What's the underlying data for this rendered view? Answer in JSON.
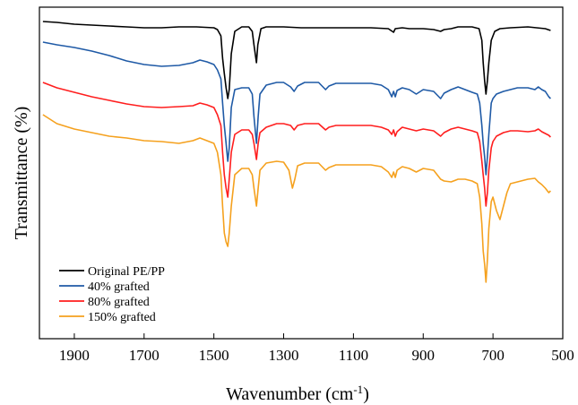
{
  "chart_data": {
    "type": "line",
    "xlabel_main": "Wavenumber (cm",
    "xlabel_sup": "-1",
    "xlabel_end": ")",
    "ylabel": "Transmittance (%)",
    "xlim": [
      2000,
      500
    ],
    "x_reversed": true,
    "y_ticks_shown": false,
    "grid": false,
    "legend_position": "bottom-left",
    "x_ticks": [
      1900,
      1700,
      1500,
      1300,
      1100,
      900,
      700,
      500
    ],
    "series": [
      {
        "name": "Original PE/PP",
        "color": "#000000",
        "points": [
          [
            1990,
            4
          ],
          [
            1950,
            5
          ],
          [
            1900,
            7
          ],
          [
            1850,
            8
          ],
          [
            1800,
            9
          ],
          [
            1750,
            10
          ],
          [
            1700,
            11
          ],
          [
            1650,
            11
          ],
          [
            1600,
            10
          ],
          [
            1550,
            10
          ],
          [
            1500,
            11
          ],
          [
            1490,
            13
          ],
          [
            1480,
            20
          ],
          [
            1475,
            45
          ],
          [
            1470,
            62
          ],
          [
            1465,
            78
          ],
          [
            1460,
            90
          ],
          [
            1456,
            80
          ],
          [
            1450,
            40
          ],
          [
            1440,
            15
          ],
          [
            1420,
            10
          ],
          [
            1400,
            10
          ],
          [
            1390,
            15
          ],
          [
            1385,
            30
          ],
          [
            1378,
            50
          ],
          [
            1374,
            30
          ],
          [
            1365,
            12
          ],
          [
            1350,
            10
          ],
          [
            1300,
            10
          ],
          [
            1250,
            11
          ],
          [
            1200,
            11
          ],
          [
            1150,
            11
          ],
          [
            1100,
            11
          ],
          [
            1050,
            11
          ],
          [
            1000,
            12
          ],
          [
            985,
            16
          ],
          [
            980,
            12
          ],
          [
            960,
            11
          ],
          [
            940,
            12
          ],
          [
            900,
            12
          ],
          [
            870,
            13
          ],
          [
            850,
            15
          ],
          [
            840,
            13
          ],
          [
            820,
            12
          ],
          [
            800,
            10
          ],
          [
            760,
            10
          ],
          [
            740,
            12
          ],
          [
            732,
            25
          ],
          [
            728,
            50
          ],
          [
            724,
            70
          ],
          [
            720,
            85
          ],
          [
            716,
            70
          ],
          [
            712,
            50
          ],
          [
            705,
            25
          ],
          [
            695,
            15
          ],
          [
            680,
            12
          ],
          [
            650,
            11
          ],
          [
            600,
            10
          ],
          [
            550,
            12
          ],
          [
            535,
            14
          ]
        ]
      },
      {
        "name": "40% grafted",
        "color": "#1f5aa6",
        "points": [
          [
            1990,
            27
          ],
          [
            1950,
            30
          ],
          [
            1900,
            33
          ],
          [
            1850,
            37
          ],
          [
            1800,
            42
          ],
          [
            1750,
            48
          ],
          [
            1700,
            52
          ],
          [
            1650,
            54
          ],
          [
            1600,
            53
          ],
          [
            1560,
            50
          ],
          [
            1540,
            47
          ],
          [
            1520,
            49
          ],
          [
            1500,
            52
          ],
          [
            1490,
            58
          ],
          [
            1480,
            68
          ],
          [
            1475,
            95
          ],
          [
            1470,
            120
          ],
          [
            1465,
            140
          ],
          [
            1460,
            160
          ],
          [
            1456,
            145
          ],
          [
            1450,
            100
          ],
          [
            1440,
            80
          ],
          [
            1420,
            78
          ],
          [
            1400,
            78
          ],
          [
            1390,
            85
          ],
          [
            1385,
            110
          ],
          [
            1378,
            140
          ],
          [
            1373,
            110
          ],
          [
            1368,
            85
          ],
          [
            1350,
            75
          ],
          [
            1320,
            72
          ],
          [
            1300,
            72
          ],
          [
            1280,
            77
          ],
          [
            1270,
            82
          ],
          [
            1260,
            76
          ],
          [
            1240,
            72
          ],
          [
            1200,
            72
          ],
          [
            1180,
            80
          ],
          [
            1170,
            76
          ],
          [
            1150,
            73
          ],
          [
            1100,
            73
          ],
          [
            1050,
            73
          ],
          [
            1020,
            75
          ],
          [
            1000,
            80
          ],
          [
            990,
            88
          ],
          [
            985,
            82
          ],
          [
            980,
            88
          ],
          [
            975,
            81
          ],
          [
            960,
            78
          ],
          [
            940,
            80
          ],
          [
            920,
            85
          ],
          [
            900,
            80
          ],
          [
            870,
            82
          ],
          [
            850,
            90
          ],
          [
            840,
            84
          ],
          [
            820,
            80
          ],
          [
            800,
            77
          ],
          [
            780,
            80
          ],
          [
            760,
            83
          ],
          [
            745,
            85
          ],
          [
            738,
            95
          ],
          [
            732,
            120
          ],
          [
            728,
            140
          ],
          [
            724,
            155
          ],
          [
            720,
            175
          ],
          [
            716,
            155
          ],
          [
            712,
            130
          ],
          [
            705,
            95
          ],
          [
            700,
            90
          ],
          [
            690,
            85
          ],
          [
            670,
            82
          ],
          [
            650,
            80
          ],
          [
            630,
            78
          ],
          [
            600,
            78
          ],
          [
            580,
            80
          ],
          [
            570,
            77
          ],
          [
            560,
            80
          ],
          [
            550,
            82
          ],
          [
            540,
            88
          ],
          [
            535,
            90
          ]
        ]
      },
      {
        "name": "80% grafted",
        "color": "#ff1e1e",
        "points": [
          [
            1990,
            72
          ],
          [
            1950,
            78
          ],
          [
            1900,
            83
          ],
          [
            1850,
            88
          ],
          [
            1800,
            92
          ],
          [
            1750,
            96
          ],
          [
            1700,
            99
          ],
          [
            1650,
            100
          ],
          [
            1600,
            99
          ],
          [
            1560,
            98
          ],
          [
            1540,
            95
          ],
          [
            1520,
            97
          ],
          [
            1500,
            100
          ],
          [
            1490,
            108
          ],
          [
            1480,
            120
          ],
          [
            1475,
            150
          ],
          [
            1470,
            175
          ],
          [
            1465,
            190
          ],
          [
            1460,
            200
          ],
          [
            1456,
            180
          ],
          [
            1450,
            150
          ],
          [
            1440,
            130
          ],
          [
            1420,
            125
          ],
          [
            1400,
            125
          ],
          [
            1390,
            130
          ],
          [
            1385,
            140
          ],
          [
            1378,
            158
          ],
          [
            1373,
            140
          ],
          [
            1368,
            128
          ],
          [
            1350,
            122
          ],
          [
            1320,
            118
          ],
          [
            1300,
            118
          ],
          [
            1280,
            120
          ],
          [
            1270,
            125
          ],
          [
            1260,
            120
          ],
          [
            1240,
            118
          ],
          [
            1200,
            118
          ],
          [
            1180,
            125
          ],
          [
            1170,
            122
          ],
          [
            1150,
            120
          ],
          [
            1100,
            120
          ],
          [
            1050,
            120
          ],
          [
            1020,
            122
          ],
          [
            1000,
            125
          ],
          [
            990,
            130
          ],
          [
            985,
            125
          ],
          [
            980,
            132
          ],
          [
            975,
            127
          ],
          [
            960,
            122
          ],
          [
            940,
            124
          ],
          [
            920,
            126
          ],
          [
            900,
            124
          ],
          [
            870,
            126
          ],
          [
            850,
            132
          ],
          [
            840,
            128
          ],
          [
            820,
            124
          ],
          [
            800,
            122
          ],
          [
            780,
            124
          ],
          [
            760,
            126
          ],
          [
            745,
            128
          ],
          [
            738,
            138
          ],
          [
            732,
            160
          ],
          [
            728,
            175
          ],
          [
            724,
            190
          ],
          [
            720,
            210
          ],
          [
            716,
            195
          ],
          [
            712,
            170
          ],
          [
            705,
            145
          ],
          [
            700,
            138
          ],
          [
            690,
            132
          ],
          [
            670,
            128
          ],
          [
            650,
            126
          ],
          [
            630,
            126
          ],
          [
            600,
            127
          ],
          [
            580,
            126
          ],
          [
            570,
            124
          ],
          [
            560,
            127
          ],
          [
            550,
            129
          ],
          [
            540,
            131
          ],
          [
            535,
            133
          ]
        ]
      },
      {
        "name": "150% grafted",
        "color": "#f5a11e",
        "points": [
          [
            1990,
            108
          ],
          [
            1950,
            118
          ],
          [
            1900,
            124
          ],
          [
            1850,
            128
          ],
          [
            1800,
            132
          ],
          [
            1750,
            134
          ],
          [
            1700,
            137
          ],
          [
            1650,
            138
          ],
          [
            1600,
            140
          ],
          [
            1560,
            137
          ],
          [
            1540,
            134
          ],
          [
            1520,
            137
          ],
          [
            1500,
            140
          ],
          [
            1490,
            150
          ],
          [
            1480,
            175
          ],
          [
            1475,
            210
          ],
          [
            1470,
            240
          ],
          [
            1465,
            250
          ],
          [
            1460,
            255
          ],
          [
            1456,
            240
          ],
          [
            1450,
            210
          ],
          [
            1440,
            175
          ],
          [
            1420,
            168
          ],
          [
            1400,
            168
          ],
          [
            1390,
            175
          ],
          [
            1385,
            190
          ],
          [
            1378,
            210
          ],
          [
            1373,
            190
          ],
          [
            1368,
            170
          ],
          [
            1350,
            162
          ],
          [
            1320,
            160
          ],
          [
            1300,
            161
          ],
          [
            1285,
            170
          ],
          [
            1275,
            190
          ],
          [
            1268,
            180
          ],
          [
            1260,
            165
          ],
          [
            1240,
            162
          ],
          [
            1200,
            162
          ],
          [
            1180,
            170
          ],
          [
            1170,
            167
          ],
          [
            1150,
            164
          ],
          [
            1100,
            164
          ],
          [
            1050,
            164
          ],
          [
            1020,
            166
          ],
          [
            1000,
            172
          ],
          [
            990,
            178
          ],
          [
            985,
            172
          ],
          [
            980,
            178
          ],
          [
            975,
            170
          ],
          [
            960,
            166
          ],
          [
            940,
            168
          ],
          [
            920,
            172
          ],
          [
            900,
            168
          ],
          [
            870,
            170
          ],
          [
            850,
            180
          ],
          [
            840,
            182
          ],
          [
            820,
            183
          ],
          [
            800,
            180
          ],
          [
            780,
            180
          ],
          [
            760,
            182
          ],
          [
            745,
            185
          ],
          [
            738,
            200
          ],
          [
            732,
            230
          ],
          [
            728,
            260
          ],
          [
            724,
            275
          ],
          [
            720,
            295
          ],
          [
            716,
            270
          ],
          [
            712,
            235
          ],
          [
            705,
            205
          ],
          [
            700,
            200
          ],
          [
            690,
            215
          ],
          [
            680,
            225
          ],
          [
            670,
            210
          ],
          [
            660,
            195
          ],
          [
            650,
            185
          ],
          [
            630,
            183
          ],
          [
            600,
            180
          ],
          [
            580,
            179
          ],
          [
            570,
            183
          ],
          [
            560,
            186
          ],
          [
            550,
            190
          ],
          [
            540,
            195
          ],
          [
            535,
            193
          ]
        ]
      }
    ]
  }
}
